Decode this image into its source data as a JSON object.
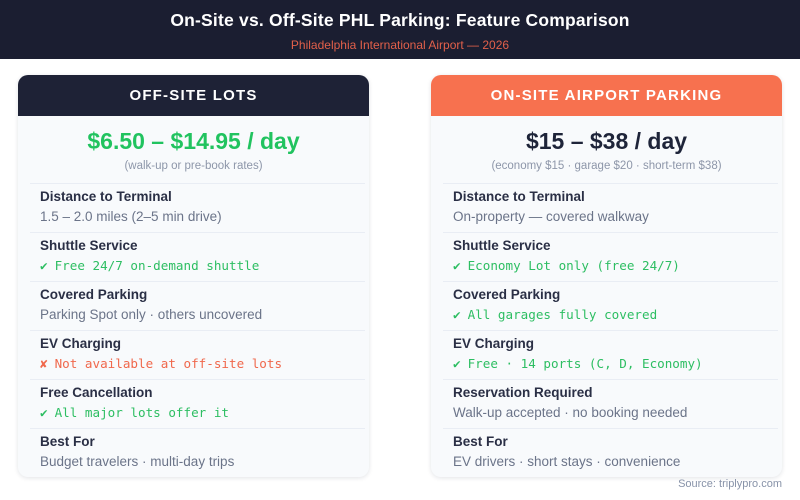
{
  "header": {
    "title": "On-Site vs. Off-Site PHL Parking: Feature Comparison",
    "subtitle": "Philadelphia International Airport — 2026"
  },
  "colors": {
    "banner_bg": "#1b1e31",
    "subtitle_accent": "#e2604a",
    "offsite_header_bg": "#1e2236",
    "onsite_header_bg": "#f7714f",
    "price_green": "#21c35f",
    "price_dark": "#1e2439",
    "status_good": "#2dbe62",
    "status_bad": "#f0684c"
  },
  "cards": [
    {
      "id": "offsite",
      "header": "OFF-SITE LOTS",
      "price": "$6.50 – $14.95 / day",
      "price_style": "green",
      "price_note": "(walk-up or pre-book rates)",
      "rows": [
        {
          "label": "Distance to Terminal",
          "icon": "",
          "text": "1.5 – 2.0 miles (2–5 min drive)",
          "status": "plain"
        },
        {
          "label": "Shuttle Service",
          "icon": "✔",
          "text": "Free 24/7 on-demand shuttle",
          "status": "good"
        },
        {
          "label": "Covered Parking",
          "icon": "",
          "text": "Parking Spot only · others uncovered",
          "status": "plain"
        },
        {
          "label": "EV Charging",
          "icon": "✘",
          "text": "Not available at off-site lots",
          "status": "bad"
        },
        {
          "label": "Free Cancellation",
          "icon": "✔",
          "text": "All major lots offer it",
          "status": "good"
        },
        {
          "label": "Best For",
          "icon": "",
          "text": "Budget travelers · multi-day trips",
          "status": "plain"
        }
      ]
    },
    {
      "id": "onsite",
      "header": "ON-SITE AIRPORT PARKING",
      "price": "$15 – $38 / day",
      "price_style": "dark",
      "price_note": "(economy $15 · garage $20 · short-term $38)",
      "rows": [
        {
          "label": "Distance to Terminal",
          "icon": "",
          "text": "On-property — covered walkway",
          "status": "plain"
        },
        {
          "label": "Shuttle Service",
          "icon": "✔",
          "text": "Economy Lot only (free 24/7)",
          "status": "good"
        },
        {
          "label": "Covered Parking",
          "icon": "✔",
          "text": "All garages fully covered",
          "status": "good"
        },
        {
          "label": "EV Charging",
          "icon": "✔",
          "text": "Free · 14 ports (C, D, Economy)",
          "status": "good"
        },
        {
          "label": "Reservation Required",
          "icon": "",
          "text": "Walk-up accepted · no booking needed",
          "status": "plain"
        },
        {
          "label": "Best For",
          "icon": "",
          "text": "EV drivers · short stays · convenience",
          "status": "plain"
        }
      ]
    }
  ],
  "footer": {
    "source": "Source: triplypro.com"
  }
}
